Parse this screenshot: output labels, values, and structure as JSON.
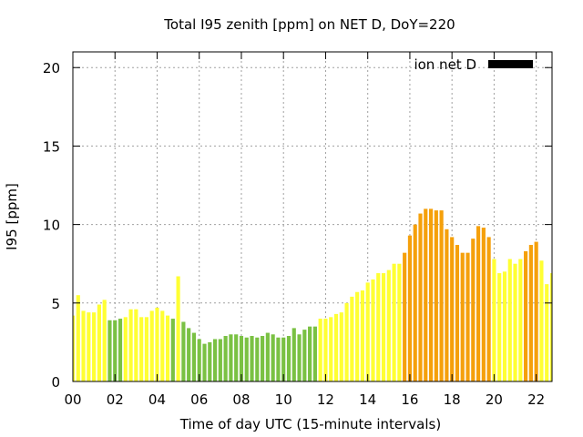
{
  "chart_data": {
    "type": "bar",
    "title": "Total I95 zenith [ppm] on NET D, DoY=220",
    "xlabel": "Time of day UTC (15-minute intervals)",
    "ylabel": "I95 [ppm]",
    "ylim": [
      0,
      21
    ],
    "xlim": [
      0,
      22.75
    ],
    "yticks": [
      0,
      5,
      10,
      15,
      20
    ],
    "xticks": [
      0,
      2,
      4,
      6,
      8,
      10,
      12,
      14,
      16,
      18,
      20,
      22
    ],
    "xtick_labels": [
      "00",
      "02",
      "04",
      "06",
      "08",
      "10",
      "12",
      "14",
      "16",
      "18",
      "20",
      "22"
    ],
    "grid": true,
    "legend": {
      "label": "ion net D",
      "color": "#000000",
      "position": "top-right"
    },
    "bar_width_hours": 0.18,
    "colors": {
      "yellow": "#ffff33",
      "green": "#7ac143",
      "orange": "#f5a00b"
    },
    "bars": [
      {
        "x": 0.0,
        "value": 4.2,
        "c": "yellow"
      },
      {
        "x": 0.25,
        "value": 5.5,
        "c": "yellow"
      },
      {
        "x": 0.5,
        "value": 4.5,
        "c": "yellow"
      },
      {
        "x": 0.75,
        "value": 4.4,
        "c": "yellow"
      },
      {
        "x": 1.0,
        "value": 4.4,
        "c": "yellow"
      },
      {
        "x": 1.25,
        "value": 4.9,
        "c": "yellow"
      },
      {
        "x": 1.5,
        "value": 5.2,
        "c": "yellow"
      },
      {
        "x": 1.75,
        "value": 3.9,
        "c": "green"
      },
      {
        "x": 2.0,
        "value": 3.9,
        "c": "green"
      },
      {
        "x": 2.25,
        "value": 4.0,
        "c": "green"
      },
      {
        "x": 2.5,
        "value": 4.1,
        "c": "yellow"
      },
      {
        "x": 2.75,
        "value": 4.6,
        "c": "yellow"
      },
      {
        "x": 3.0,
        "value": 4.6,
        "c": "yellow"
      },
      {
        "x": 3.25,
        "value": 4.1,
        "c": "yellow"
      },
      {
        "x": 3.5,
        "value": 4.1,
        "c": "yellow"
      },
      {
        "x": 3.75,
        "value": 4.5,
        "c": "yellow"
      },
      {
        "x": 4.0,
        "value": 4.7,
        "c": "yellow"
      },
      {
        "x": 4.25,
        "value": 4.5,
        "c": "yellow"
      },
      {
        "x": 4.5,
        "value": 4.2,
        "c": "yellow"
      },
      {
        "x": 4.75,
        "value": 4.0,
        "c": "green"
      },
      {
        "x": 5.0,
        "value": 6.7,
        "c": "yellow"
      },
      {
        "x": 5.25,
        "value": 3.8,
        "c": "green"
      },
      {
        "x": 5.5,
        "value": 3.4,
        "c": "green"
      },
      {
        "x": 5.75,
        "value": 3.1,
        "c": "green"
      },
      {
        "x": 6.0,
        "value": 2.7,
        "c": "green"
      },
      {
        "x": 6.25,
        "value": 2.4,
        "c": "green"
      },
      {
        "x": 6.5,
        "value": 2.5,
        "c": "green"
      },
      {
        "x": 6.75,
        "value": 2.7,
        "c": "green"
      },
      {
        "x": 7.0,
        "value": 2.7,
        "c": "green"
      },
      {
        "x": 7.25,
        "value": 2.9,
        "c": "green"
      },
      {
        "x": 7.5,
        "value": 3.0,
        "c": "green"
      },
      {
        "x": 7.75,
        "value": 3.0,
        "c": "green"
      },
      {
        "x": 8.0,
        "value": 2.9,
        "c": "green"
      },
      {
        "x": 8.25,
        "value": 2.8,
        "c": "green"
      },
      {
        "x": 8.5,
        "value": 2.9,
        "c": "green"
      },
      {
        "x": 8.75,
        "value": 2.8,
        "c": "green"
      },
      {
        "x": 9.0,
        "value": 2.9,
        "c": "green"
      },
      {
        "x": 9.25,
        "value": 3.1,
        "c": "green"
      },
      {
        "x": 9.5,
        "value": 3.0,
        "c": "green"
      },
      {
        "x": 9.75,
        "value": 2.8,
        "c": "green"
      },
      {
        "x": 10.0,
        "value": 2.8,
        "c": "green"
      },
      {
        "x": 10.25,
        "value": 2.9,
        "c": "green"
      },
      {
        "x": 10.5,
        "value": 3.4,
        "c": "green"
      },
      {
        "x": 10.75,
        "value": 3.0,
        "c": "green"
      },
      {
        "x": 11.0,
        "value": 3.3,
        "c": "green"
      },
      {
        "x": 11.25,
        "value": 3.5,
        "c": "green"
      },
      {
        "x": 11.5,
        "value": 3.5,
        "c": "green"
      },
      {
        "x": 11.75,
        "value": 4.0,
        "c": "yellow"
      },
      {
        "x": 12.0,
        "value": 4.0,
        "c": "yellow"
      },
      {
        "x": 12.25,
        "value": 4.1,
        "c": "yellow"
      },
      {
        "x": 12.5,
        "value": 4.3,
        "c": "yellow"
      },
      {
        "x": 12.75,
        "value": 4.4,
        "c": "yellow"
      },
      {
        "x": 13.0,
        "value": 5.0,
        "c": "yellow"
      },
      {
        "x": 13.25,
        "value": 5.4,
        "c": "yellow"
      },
      {
        "x": 13.5,
        "value": 5.7,
        "c": "yellow"
      },
      {
        "x": 13.75,
        "value": 5.8,
        "c": "yellow"
      },
      {
        "x": 14.0,
        "value": 6.3,
        "c": "yellow"
      },
      {
        "x": 14.25,
        "value": 6.5,
        "c": "yellow"
      },
      {
        "x": 14.5,
        "value": 6.9,
        "c": "yellow"
      },
      {
        "x": 14.75,
        "value": 6.9,
        "c": "yellow"
      },
      {
        "x": 15.0,
        "value": 7.1,
        "c": "yellow"
      },
      {
        "x": 15.25,
        "value": 7.5,
        "c": "yellow"
      },
      {
        "x": 15.5,
        "value": 7.5,
        "c": "yellow"
      },
      {
        "x": 15.75,
        "value": 8.2,
        "c": "orange"
      },
      {
        "x": 16.0,
        "value": 9.3,
        "c": "orange"
      },
      {
        "x": 16.25,
        "value": 10.0,
        "c": "orange"
      },
      {
        "x": 16.5,
        "value": 10.7,
        "c": "orange"
      },
      {
        "x": 16.75,
        "value": 11.0,
        "c": "orange"
      },
      {
        "x": 17.0,
        "value": 11.0,
        "c": "orange"
      },
      {
        "x": 17.25,
        "value": 10.9,
        "c": "orange"
      },
      {
        "x": 17.5,
        "value": 10.9,
        "c": "orange"
      },
      {
        "x": 17.75,
        "value": 9.7,
        "c": "orange"
      },
      {
        "x": 18.0,
        "value": 9.2,
        "c": "orange"
      },
      {
        "x": 18.25,
        "value": 8.7,
        "c": "orange"
      },
      {
        "x": 18.5,
        "value": 8.2,
        "c": "orange"
      },
      {
        "x": 18.75,
        "value": 8.2,
        "c": "orange"
      },
      {
        "x": 19.0,
        "value": 9.1,
        "c": "orange"
      },
      {
        "x": 19.25,
        "value": 9.9,
        "c": "orange"
      },
      {
        "x": 19.5,
        "value": 9.8,
        "c": "orange"
      },
      {
        "x": 19.75,
        "value": 9.2,
        "c": "orange"
      },
      {
        "x": 20.0,
        "value": 7.8,
        "c": "yellow"
      },
      {
        "x": 20.25,
        "value": 6.9,
        "c": "yellow"
      },
      {
        "x": 20.5,
        "value": 7.0,
        "c": "yellow"
      },
      {
        "x": 20.75,
        "value": 7.8,
        "c": "yellow"
      },
      {
        "x": 21.0,
        "value": 7.5,
        "c": "yellow"
      },
      {
        "x": 21.25,
        "value": 7.8,
        "c": "yellow"
      },
      {
        "x": 21.5,
        "value": 8.3,
        "c": "orange"
      },
      {
        "x": 21.75,
        "value": 8.7,
        "c": "orange"
      },
      {
        "x": 22.0,
        "value": 8.9,
        "c": "orange"
      },
      {
        "x": 22.25,
        "value": 7.7,
        "c": "yellow"
      },
      {
        "x": 22.5,
        "value": 6.2,
        "c": "yellow"
      },
      {
        "x": 22.75,
        "value": 6.9,
        "c": "yellow"
      }
    ]
  }
}
